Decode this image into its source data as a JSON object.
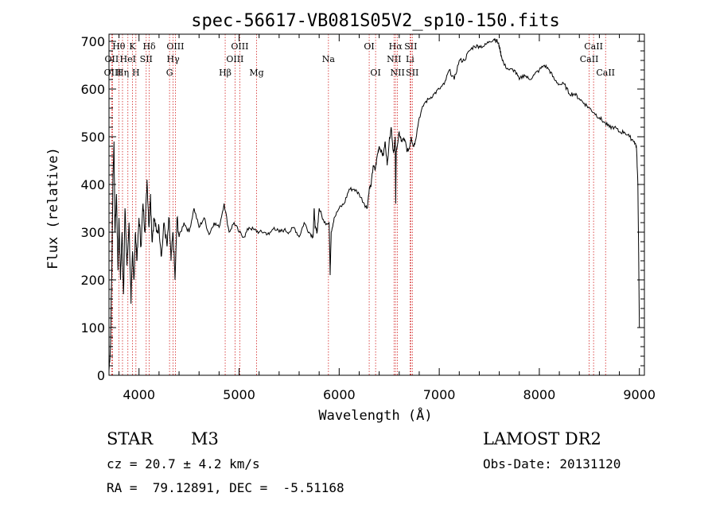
{
  "chart_data": {
    "type": "line",
    "title": "spec-56617-VB081S05V2_sp10-150.fits",
    "xlabel": "Wavelength (Å)",
    "ylabel": "Flux (relative)",
    "xlim": [
      3700,
      9050
    ],
    "ylim": [
      0,
      715
    ],
    "xticks": [
      4000,
      5000,
      6000,
      7000,
      8000,
      9000
    ],
    "yticks": [
      0,
      100,
      200,
      300,
      400,
      500,
      600,
      700
    ],
    "line_color": "#000000",
    "marker_color": "#cc0000",
    "series": [
      {
        "x": [
          3700,
          3715,
          3730,
          3740,
          3750,
          3760,
          3775,
          3790,
          3800,
          3815,
          3830,
          3845,
          3860,
          3880,
          3900,
          3920,
          3935,
          3950,
          3965,
          3980,
          4000,
          4020,
          4040,
          4060,
          4080,
          4100,
          4115,
          4130,
          4150,
          4175,
          4200,
          4225,
          4250,
          4280,
          4300,
          4320,
          4340,
          4360,
          4380,
          4400,
          4450,
          4500,
          4550,
          4600,
          4650,
          4700,
          4750,
          4800,
          4850,
          4900,
          4950,
          5000,
          5050,
          5100,
          5150,
          5200,
          5250,
          5300,
          5350,
          5400,
          5450,
          5500,
          5550,
          5600,
          5650,
          5700,
          5740,
          5750,
          5760,
          5780,
          5800,
          5850,
          5900,
          5910,
          5920,
          5950,
          6000,
          6050,
          6100,
          6150,
          6200,
          6250,
          6280,
          6300,
          6320,
          6340,
          6360,
          6380,
          6400,
          6420,
          6440,
          6460,
          6480,
          6500,
          6520,
          6540,
          6550,
          6560,
          6565,
          6570,
          6580,
          6600,
          6620,
          6640,
          6660,
          6680,
          6700,
          6720,
          6740,
          6760,
          6800,
          6850,
          6900,
          6950,
          7000,
          7050,
          7100,
          7150,
          7200,
          7250,
          7300,
          7350,
          7400,
          7450,
          7500,
          7550,
          7580,
          7600,
          7620,
          7650,
          7700,
          7750,
          7800,
          7850,
          7900,
          7950,
          8000,
          8050,
          8100,
          8150,
          8200,
          8250,
          8300,
          8350,
          8400,
          8450,
          8500,
          8550,
          8600,
          8650,
          8700,
          8750,
          8800,
          8850,
          8900,
          8950,
          8970,
          8985,
          9000
        ],
        "y": [
          10,
          60,
          250,
          420,
          490,
          300,
          380,
          220,
          330,
          200,
          300,
          170,
          350,
          230,
          320,
          150,
          260,
          200,
          300,
          240,
          330,
          270,
          360,
          300,
          410,
          310,
          380,
          280,
          330,
          300,
          310,
          250,
          320,
          270,
          330,
          240,
          300,
          200,
          330,
          290,
          320,
          300,
          350,
          310,
          330,
          295,
          320,
          310,
          360,
          300,
          320,
          300,
          290,
          310,
          305,
          300,
          300,
          295,
          310,
          300,
          305,
          300,
          310,
          290,
          320,
          300,
          290,
          350,
          310,
          300,
          350,
          320,
          320,
          210,
          300,
          330,
          350,
          360,
          390,
          390,
          380,
          360,
          350,
          390,
          400,
          440,
          430,
          460,
          480,
          470,
          460,
          490,
          440,
          490,
          520,
          470,
          470,
          500,
          360,
          470,
          480,
          510,
          490,
          495,
          490,
          470,
          475,
          500,
          480,
          490,
          540,
          570,
          580,
          590,
          600,
          610,
          640,
          620,
          660,
          660,
          680,
          690,
          690,
          690,
          700,
          705,
          700,
          690,
          670,
          650,
          640,
          640,
          620,
          630,
          620,
          630,
          640,
          650,
          640,
          620,
          610,
          610,
          590,
          590,
          580,
          570,
          560,
          550,
          540,
          530,
          520,
          520,
          510,
          510,
          500,
          490,
          480,
          400,
          100
        ]
      }
    ],
    "lines": [
      {
        "name": "Hθ",
        "x": 3798,
        "row": 1
      },
      {
        "name": "OII",
        "x": 3727,
        "row": 2
      },
      {
        "name": "OIII",
        "x": 3737,
        "row": 3
      },
      {
        "name": "K",
        "x": 3934,
        "row": 1
      },
      {
        "name": "HeI",
        "x": 3889,
        "row": 2
      },
      {
        "name": "Hη",
        "x": 3835,
        "row": 3
      },
      {
        "name": "H",
        "x": 3969,
        "row": 3
      },
      {
        "name": "Hδ",
        "x": 4102,
        "row": 1
      },
      {
        "name": "SII",
        "x": 4072,
        "row": 2
      },
      {
        "name": "OIII",
        "x": 4363,
        "row": 1
      },
      {
        "name": "Hγ",
        "x": 4341,
        "row": 2
      },
      {
        "name": "G",
        "x": 4305,
        "row": 3
      },
      {
        "name": "Hβ",
        "x": 4861,
        "row": 3
      },
      {
        "name": "OIII",
        "x": 5007,
        "row": 1
      },
      {
        "name": "OIII",
        "x": 4959,
        "row": 2
      },
      {
        "name": "Mg",
        "x": 5175,
        "row": 3
      },
      {
        "name": "Na",
        "x": 5893,
        "row": 2
      },
      {
        "name": "OI",
        "x": 6300,
        "row": 1
      },
      {
        "name": "OI",
        "x": 6364,
        "row": 3
      },
      {
        "name": "Hα",
        "x": 6563,
        "row": 1
      },
      {
        "name": "NII",
        "x": 6548,
        "row": 2
      },
      {
        "name": "NII",
        "x": 6583,
        "row": 3
      },
      {
        "name": "SII",
        "x": 6716,
        "row": 1
      },
      {
        "name": "Li",
        "x": 6708,
        "row": 2
      },
      {
        "name": "SII",
        "x": 6731,
        "row": 3
      },
      {
        "name": "CaII",
        "x": 8542,
        "row": 1
      },
      {
        "name": "CaII",
        "x": 8498,
        "row": 2
      },
      {
        "name": "CaII",
        "x": 8662,
        "row": 3
      }
    ]
  },
  "info": {
    "object_type": "STAR",
    "subclass": "M3",
    "survey": "LAMOST DR2",
    "cz": "cz = 20.7 ± 4.2 km/s",
    "obs_date": "Obs-Date: 20131120",
    "coords": "RA =  79.12891, DEC =  -5.51168"
  }
}
